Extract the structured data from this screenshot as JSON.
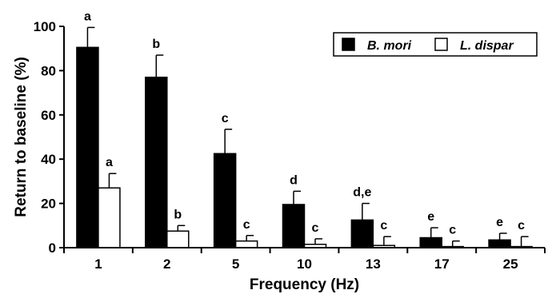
{
  "chart_data": {
    "type": "bar",
    "xlabel": "Frequency (Hz)",
    "ylabel": "Return to baseline (%)",
    "ylim": [
      0,
      100
    ],
    "yticks": [
      0,
      20,
      40,
      60,
      80,
      100
    ],
    "grid": false,
    "legend_position": "top-right",
    "categories": [
      "1",
      "2",
      "5",
      "10",
      "13",
      "17",
      "25"
    ],
    "series": [
      {
        "name": "B. mori",
        "color": "#000000",
        "fill": "solid",
        "values": [
          90.5,
          77,
          42.5,
          19.5,
          12.5,
          4.5,
          3.5
        ],
        "errors": [
          9,
          10,
          11,
          6,
          7.5,
          4.5,
          3
        ],
        "significance": [
          "a",
          "b",
          "c",
          "d",
          "d,e",
          "e",
          "e"
        ]
      },
      {
        "name": "L. dispar",
        "color": "#000000",
        "fill": "hollow",
        "values": [
          27,
          7.5,
          3,
          1.5,
          1,
          0.5,
          0.5
        ],
        "errors": [
          6.5,
          2.5,
          2.5,
          2.5,
          4,
          2.5,
          4.5
        ],
        "significance": [
          "a",
          "b",
          "c",
          "c",
          "c",
          "c",
          "c"
        ]
      }
    ]
  }
}
